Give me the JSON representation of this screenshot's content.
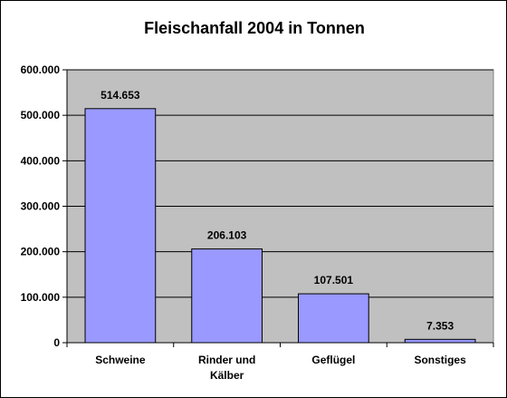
{
  "chart_data": {
    "type": "bar",
    "title": "Fleischanfall 2004 in Tonnen",
    "categories": [
      [
        "Schweine"
      ],
      [
        "Rinder und",
        "Kälber"
      ],
      [
        "Geflügel"
      ],
      [
        "Sonstiges"
      ]
    ],
    "values": [
      514653,
      206103,
      107501,
      7353
    ],
    "value_labels": [
      "514.653",
      "206.103",
      "107.501",
      "7.353"
    ],
    "ylim": [
      0,
      600000
    ],
    "yticks": [
      0,
      100000,
      200000,
      300000,
      400000,
      500000,
      600000
    ],
    "ytick_labels": [
      "0",
      "100.000",
      "200.000",
      "300.000",
      "400.000",
      "500.000",
      "600.000"
    ],
    "grid": true,
    "legend": "none",
    "colors": {
      "plot_bg": "#c0c0c0",
      "bar_fill": "#9999ff",
      "bar_stroke": "#000000",
      "grid": "#000000"
    }
  }
}
